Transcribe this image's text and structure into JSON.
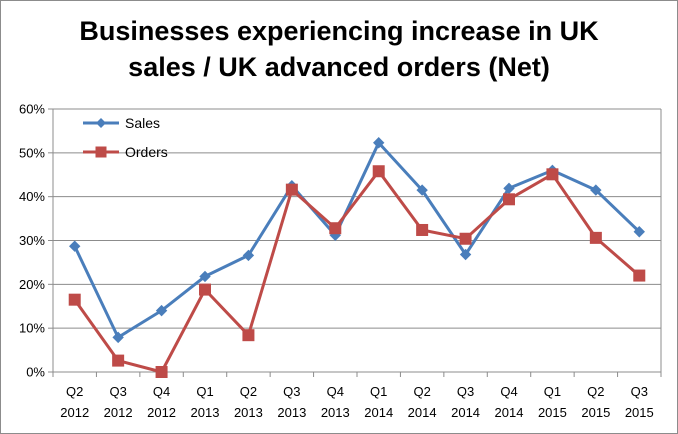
{
  "title_lines": [
    "Businesses experiencing increase in UK",
    "sales / UK advanced orders (Net)"
  ],
  "chart_data": {
    "type": "line",
    "title": "Businesses experiencing increase in UK sales / UK advanced orders (Net)",
    "categories": [
      [
        "Q2",
        "2012"
      ],
      [
        "Q3",
        "2012"
      ],
      [
        "Q4",
        "2012"
      ],
      [
        "Q1",
        "2013"
      ],
      [
        "Q2",
        "2013"
      ],
      [
        "Q3",
        "2013"
      ],
      [
        "Q4",
        "2013"
      ],
      [
        "Q1",
        "2014"
      ],
      [
        "Q2",
        "2014"
      ],
      [
        "Q3",
        "2014"
      ],
      [
        "Q4",
        "2014"
      ],
      [
        "Q1",
        "2015"
      ],
      [
        "Q2",
        "2015"
      ],
      [
        "Q3",
        "2015"
      ]
    ],
    "series": [
      {
        "name": "Sales",
        "color": "#4a7ebb",
        "marker": "diamond",
        "values": [
          28.7,
          7.9,
          14.0,
          21.8,
          26.6,
          42.5,
          31.2,
          52.3,
          41.5,
          26.8,
          41.9,
          46.0,
          41.5,
          32.0
        ]
      },
      {
        "name": "Orders",
        "color": "#be4b48",
        "marker": "square",
        "values": [
          16.5,
          2.6,
          0.0,
          18.8,
          8.4,
          41.6,
          32.8,
          45.8,
          32.4,
          30.4,
          39.4,
          45.1,
          30.6,
          22.0
        ]
      }
    ],
    "ylim": [
      0,
      60
    ],
    "yticks": [
      "0%",
      "10%",
      "20%",
      "30%",
      "40%",
      "50%",
      "60%"
    ],
    "grid": "horizontal",
    "legend": "top-left"
  }
}
